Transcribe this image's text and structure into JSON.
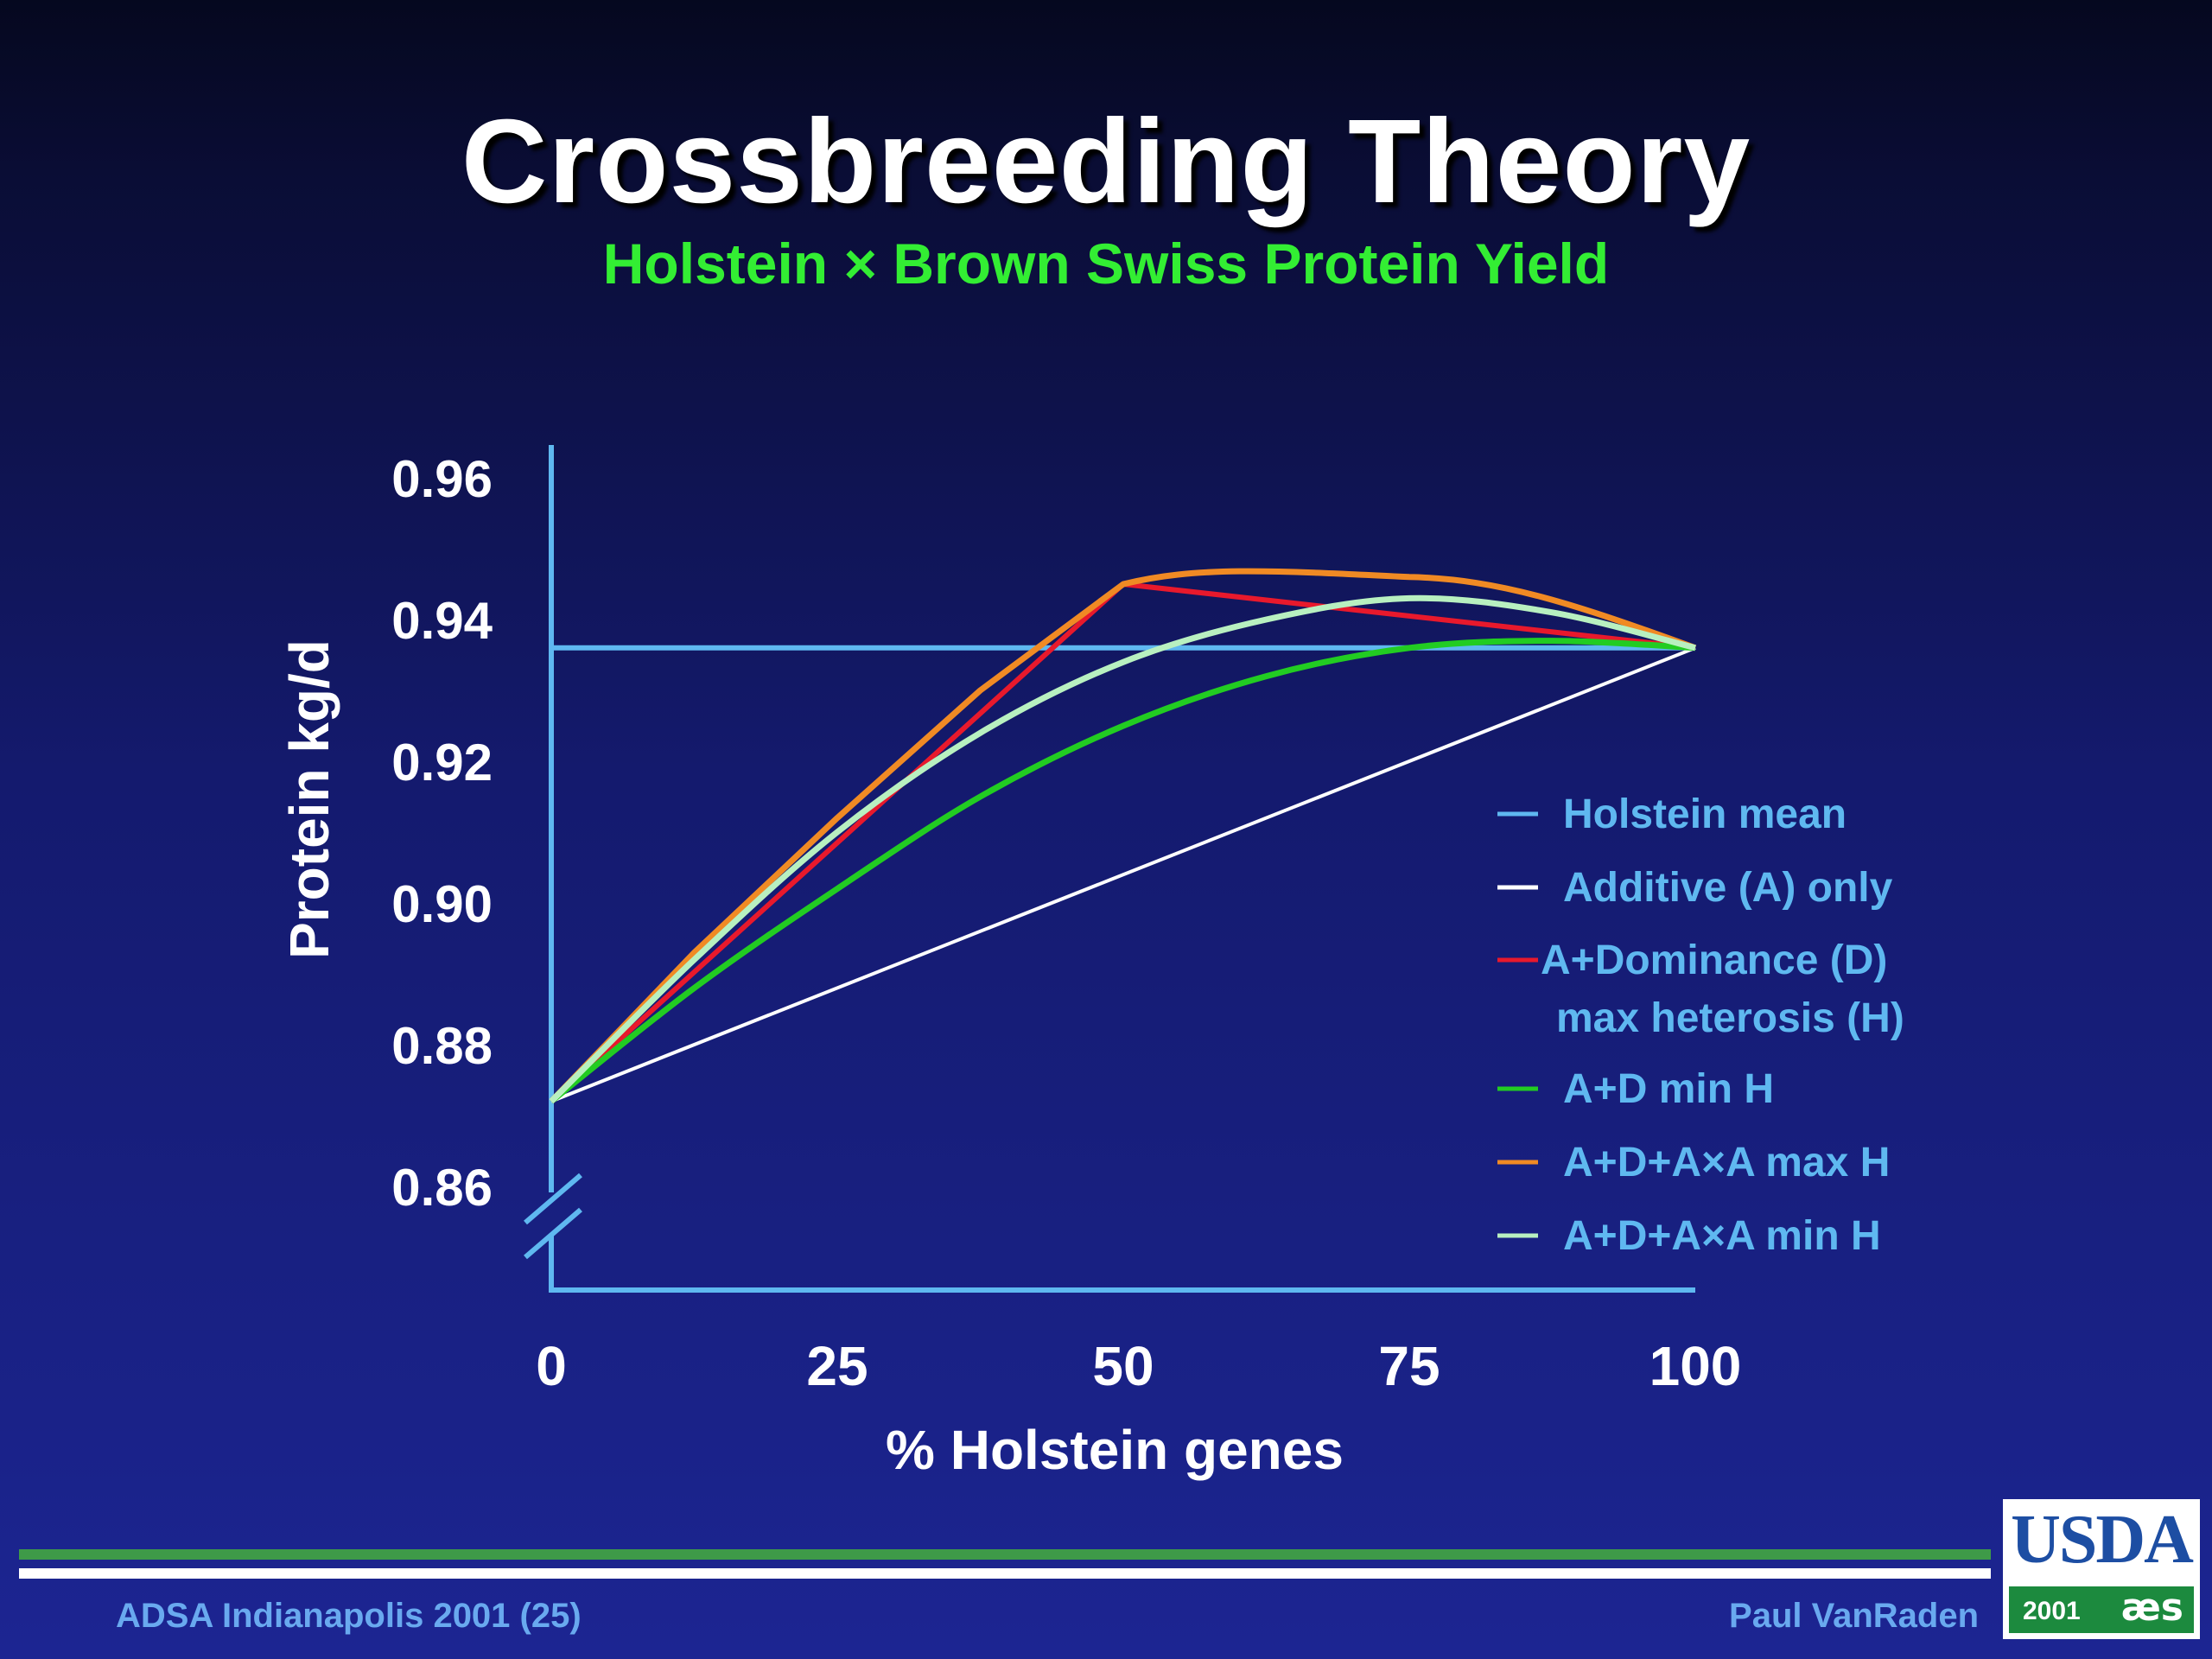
{
  "slide": {
    "title": "Crossbreeding Theory",
    "subtitle": "Holstein × Brown Swiss Protein Yield",
    "footer_left": "ADSA Indianapolis 2001 (25)",
    "footer_right": "Paul VanRaden",
    "logo_text": "USDA",
    "logo_year": "2001",
    "logo_mark": "æs"
  },
  "chart_data": {
    "type": "line",
    "xlabel": "% Holstein genes",
    "ylabel": "Protein kg/d",
    "xlim": [
      0,
      100
    ],
    "ylim": [
      0.855,
      0.965
    ],
    "y_axis_break": true,
    "grid": false,
    "legend_position": "right",
    "x_ticks": [
      "0",
      "25",
      "50",
      "75",
      "100"
    ],
    "y_ticks": [
      "0.96",
      "0.94",
      "0.92",
      "0.90",
      "0.88",
      "0.86"
    ],
    "y_tick_values": [
      0.96,
      0.94,
      0.92,
      0.9,
      0.88,
      0.86
    ],
    "x": [
      0,
      12.5,
      25,
      37.5,
      50,
      62.5,
      75,
      87.5,
      100
    ],
    "series": [
      {
        "name": "Holstein mean",
        "color": "#5fb8f0",
        "values": [
          0.936,
          0.936,
          0.936,
          0.936,
          0.936,
          0.936,
          0.936,
          0.936,
          0.936
        ]
      },
      {
        "name": "Additive (A) only",
        "color": "#ffffff",
        "values": [
          0.872,
          0.88,
          0.888,
          0.896,
          0.904,
          0.912,
          0.92,
          0.928,
          0.936
        ]
      },
      {
        "name": "A+Dominance (D) max heterosis (H)",
        "color": "#e8192c",
        "values": [
          0.872,
          0.89,
          0.908,
          0.927,
          0.945,
          0.943,
          0.941,
          0.938,
          0.936
        ]
      },
      {
        "name": "A+D min H",
        "color": "#22cc22",
        "values": [
          0.872,
          0.888,
          0.902,
          0.915,
          0.925,
          0.932,
          0.936,
          0.937,
          0.936
        ]
      },
      {
        "name": "A+D+A×A max H",
        "color": "#f08a24",
        "values": [
          0.872,
          0.893,
          0.912,
          0.93,
          0.945,
          0.947,
          0.946,
          0.942,
          0.936
        ]
      },
      {
        "name": "A+D+A×A min H",
        "color": "#b8f0c0",
        "values": [
          0.872,
          0.892,
          0.91,
          0.924,
          0.934,
          0.94,
          0.943,
          0.941,
          0.936
        ]
      }
    ]
  }
}
